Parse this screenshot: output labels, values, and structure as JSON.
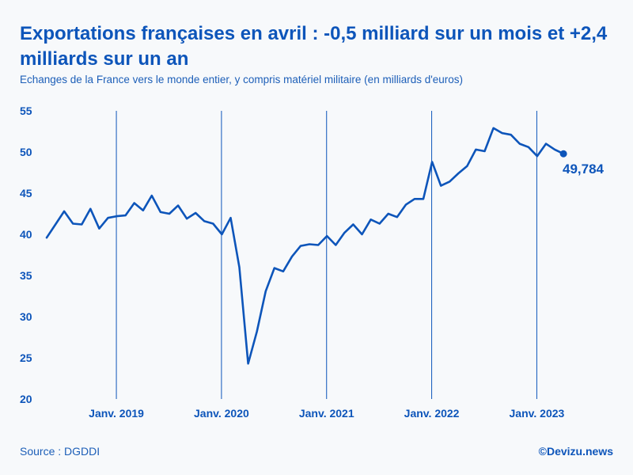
{
  "chart_data": {
    "type": "line",
    "title": "Exportations françaises en avril : -0,5 milliard sur un mois et +2,4 milliards sur un an",
    "subtitle": "Echanges de la France vers le monde entier, y compris matériel militaire (en milliards d'euros)",
    "xlabel": "",
    "ylabel": "",
    "ylim": [
      20,
      55
    ],
    "yticks": [
      55,
      50,
      45,
      40,
      35,
      30,
      25,
      20
    ],
    "x_start": "2018-05",
    "x_end": "2023-04",
    "period_markers": [
      {
        "label": "Janv. 2019",
        "index": 8
      },
      {
        "label": "Janv. 2020",
        "index": 20
      },
      {
        "label": "Janv. 2021",
        "index": 32
      },
      {
        "label": "Janv. 2022",
        "index": 44
      },
      {
        "label": "Janv. 2023",
        "index": 56
      }
    ],
    "series": [
      {
        "name": "Exportations",
        "color": "#0d55ba",
        "values": [
          39.6,
          41.2,
          42.8,
          41.3,
          41.2,
          43.1,
          40.7,
          42.0,
          42.2,
          42.3,
          43.8,
          42.9,
          44.7,
          42.7,
          42.5,
          43.5,
          41.9,
          42.6,
          41.6,
          41.3,
          40.0,
          42.0,
          36.0,
          24.3,
          28.2,
          33.1,
          35.9,
          35.5,
          37.3,
          38.6,
          38.8,
          38.7,
          39.8,
          38.7,
          40.2,
          41.2,
          40.0,
          41.8,
          41.3,
          42.5,
          42.1,
          43.6,
          44.3,
          44.3,
          48.8,
          45.9,
          46.4,
          47.4,
          48.3,
          50.3,
          50.1,
          52.9,
          52.3,
          52.1,
          51.0,
          50.6,
          49.5,
          51.0,
          50.3,
          49.784
        ]
      }
    ],
    "end_label": "49,784",
    "source": "Source : DGDDI",
    "brand": "©Devizu.news",
    "colors": {
      "accent": "#0d55ba",
      "background": "#f7f9fb"
    }
  }
}
